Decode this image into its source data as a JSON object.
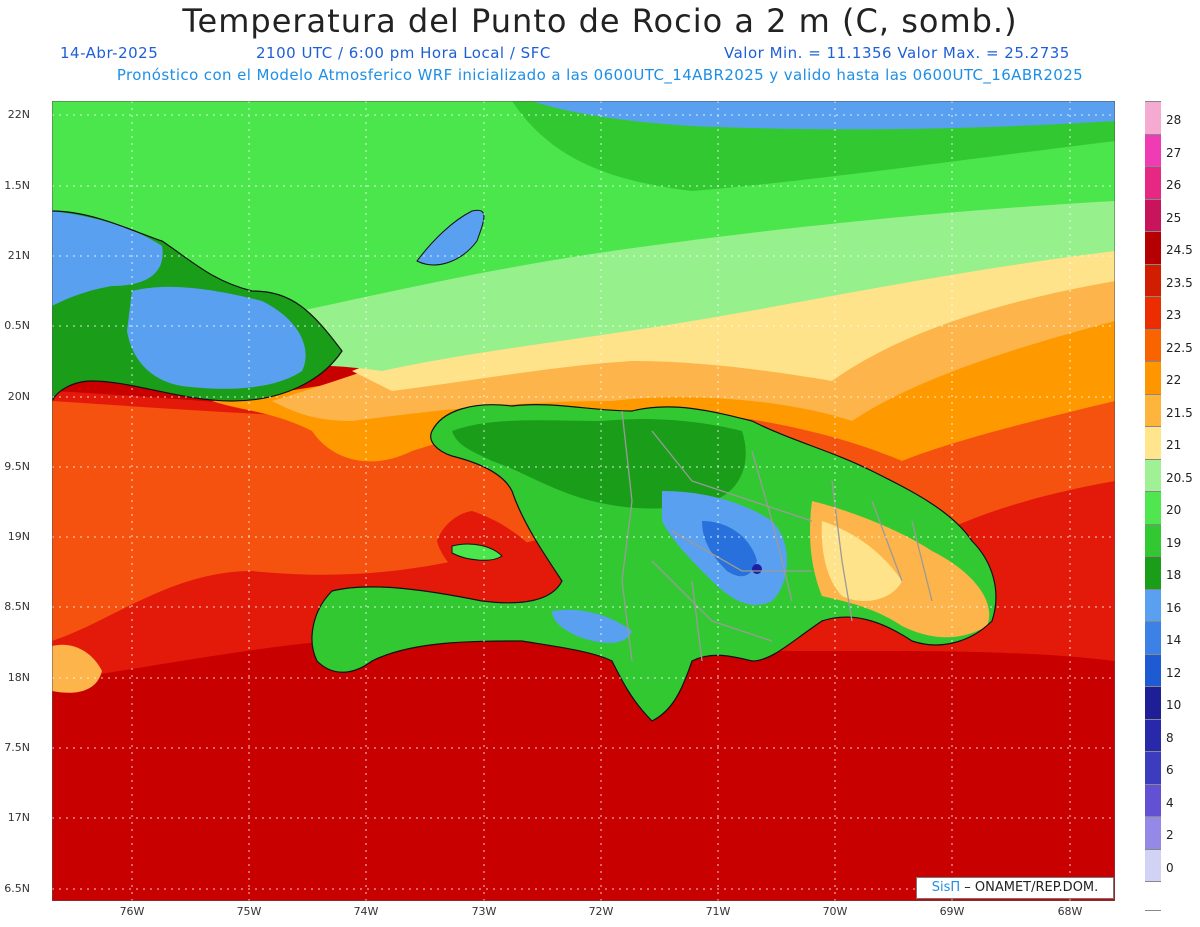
{
  "header": {
    "title": "Temperatura del Punto de Rocio a 2 m (C, somb.)",
    "date": "14-Abr-2025",
    "time_info": "2100 UTC / 6:00 pm Hora Local / SFC",
    "min_max": "Valor Min. = 11.1356  Valor Max. = 25.2735",
    "model_info": "Pronóstico con el Modelo Atmosferico WRF inicializado a las 0600UTC_14ABR2025 y valido hasta las  0600UTC_16ABR2025"
  },
  "map": {
    "lat_labels": [
      "22N",
      "1.5N",
      "21N",
      "0.5N",
      "20N",
      "9.5N",
      "19N",
      "8.5N",
      "18N",
      "7.5N",
      "17N",
      "6.5N"
    ],
    "lon_labels": [
      "76W",
      "75W",
      "74W",
      "73W",
      "72W",
      "71W",
      "70W",
      "69W",
      "68W"
    ],
    "gridlines": "dotted",
    "colors": {
      "sea_red": "#c80000",
      "red": "#e31a0a",
      "orange_red": "#f5510f",
      "orange": "#ff9900",
      "light_orange": "#fdb44a",
      "yellow": "#ffe38a",
      "light_green": "#96f08c",
      "green": "#4be64b",
      "mid_green": "#32c832",
      "dark_green": "#1a9e1a",
      "blue": "#5aa0f0",
      "dark_blue": "#2870dc",
      "navy": "#1e1ea0"
    }
  },
  "legend": {
    "labels": [
      "28",
      "27",
      "26",
      "25",
      "24.5",
      "23.5",
      "23",
      "22.5",
      "22",
      "21.5",
      "21",
      "20.5",
      "20",
      "19",
      "18",
      "16",
      "14",
      "12",
      "10",
      "8",
      "6",
      "4",
      "2",
      "0"
    ],
    "colors": [
      "#f5aad2",
      "#f03cb4",
      "#e62882",
      "#c8145a",
      "#b40000",
      "#d21e00",
      "#eb2d00",
      "#fa6400",
      "#ff9600",
      "#ffb43c",
      "#ffe68c",
      "#a0f096",
      "#50e650",
      "#32c832",
      "#1a9e1a",
      "#5aa0f0",
      "#3c82e6",
      "#1e5ad2",
      "#1e1e96",
      "#2828aa",
      "#3c3cbe",
      "#6450d2",
      "#9688e6",
      "#d2d2f5"
    ],
    "bottom_color": "#ffffff"
  },
  "credit": {
    "brand": "SisΠ",
    "text": " – ONAMET/REP.DOM."
  }
}
